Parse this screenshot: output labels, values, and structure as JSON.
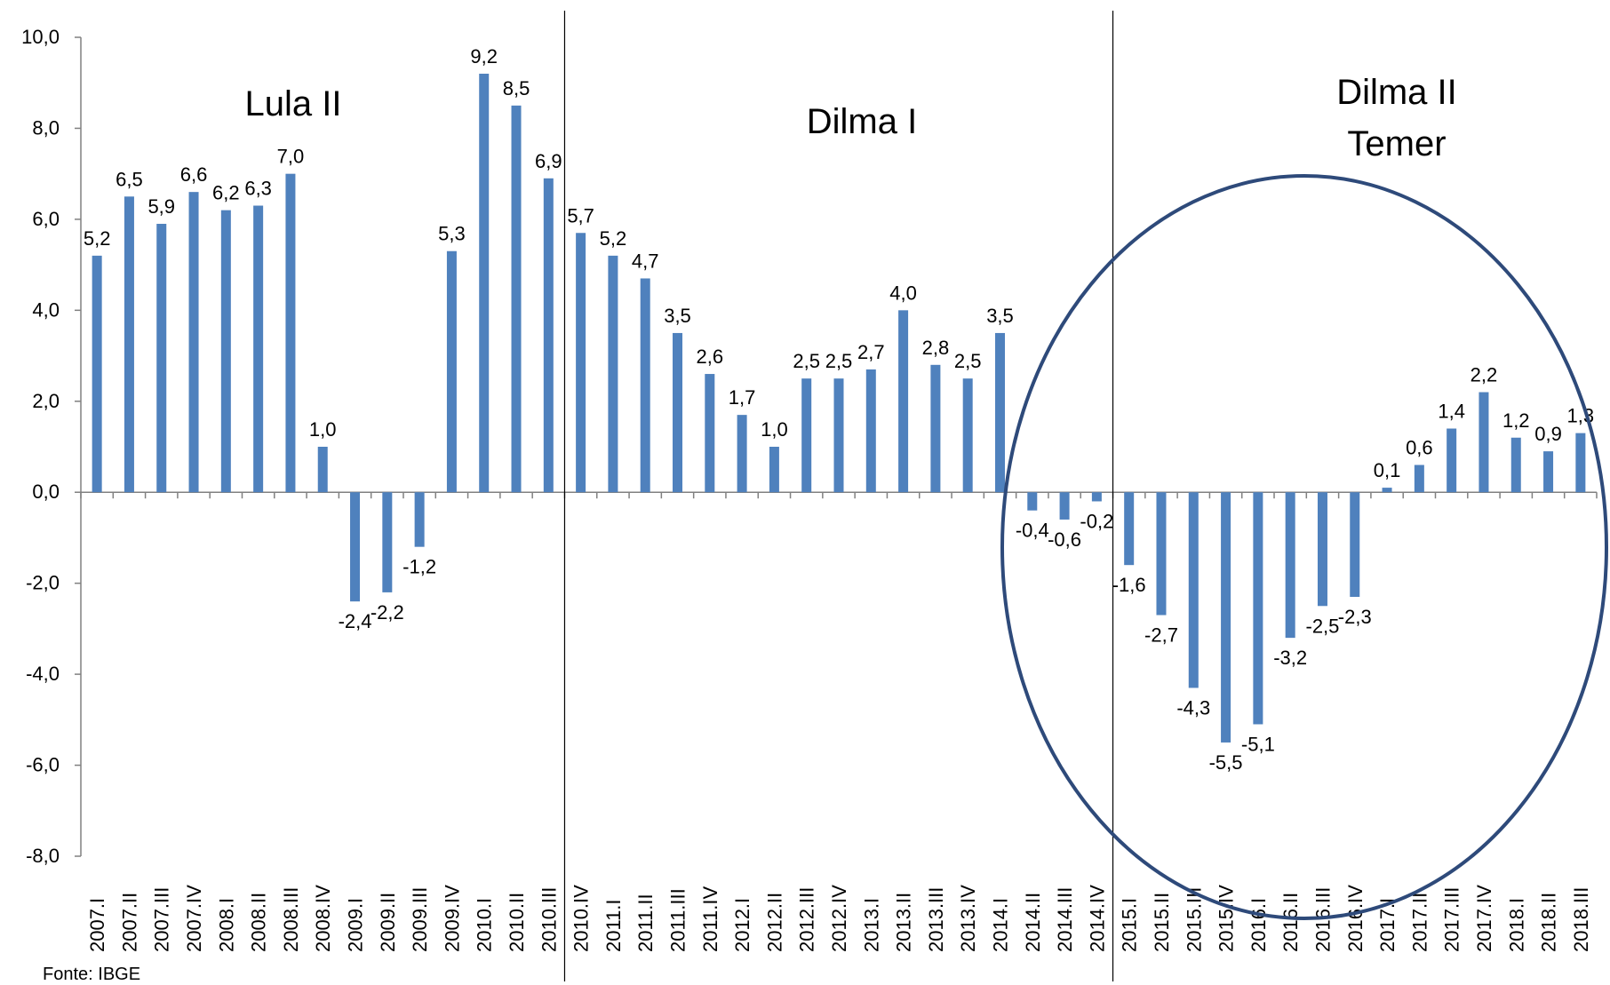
{
  "source_note": "Fonte: IBGE",
  "annotations": {
    "period_1": "Lula II",
    "period_2": "Dilma I",
    "period_3_line1": "Dilma II",
    "period_3_line2": "Temer"
  },
  "colors": {
    "bar": "#4F81BD",
    "ellipse": "#2E4A7A",
    "axis": "#808080",
    "divider": "#000000"
  },
  "chart_data": {
    "type": "bar",
    "ylim": [
      -8,
      10
    ],
    "yticks": [
      "10,0",
      "8,0",
      "6,0",
      "4,0",
      "2,0",
      "0,0",
      "-2,0",
      "-4,0",
      "-6,0",
      "-8,0"
    ],
    "ytick_values": [
      10,
      8,
      6,
      4,
      2,
      0,
      -2,
      -4,
      -6,
      -8
    ],
    "grid": false,
    "legend": "none",
    "categories": [
      "2007.I",
      "2007.II",
      "2007.III",
      "2007.IV",
      "2008.I",
      "2008.II",
      "2008.III",
      "2008.IV",
      "2009.I",
      "2009.II",
      "2009.III",
      "2009.IV",
      "2010.I",
      "2010.II",
      "2010.III",
      "2010.IV",
      "2011.I",
      "2011.II",
      "2011.III",
      "2011.IV",
      "2012.I",
      "2012.II",
      "2012.III",
      "2012.IV",
      "2013.I",
      "2013.II",
      "2013.III",
      "2013.IV",
      "2014.I",
      "2014.II",
      "2014.III",
      "2014.IV",
      "2015.I",
      "2015.II",
      "2015.III",
      "2015.IV",
      "2016.I",
      "2016.II",
      "2016.III",
      "2016.IV",
      "2017.I",
      "2017.II",
      "2017.III",
      "2017.IV",
      "2018.I",
      "2018.II",
      "2018.III"
    ],
    "values": [
      5.2,
      6.5,
      5.9,
      6.6,
      6.2,
      6.3,
      7.0,
      1.0,
      -2.4,
      -2.2,
      -1.2,
      5.3,
      9.2,
      8.5,
      6.9,
      5.7,
      5.2,
      4.7,
      3.5,
      2.6,
      1.7,
      1.0,
      2.5,
      2.5,
      2.7,
      4.0,
      2.8,
      2.5,
      3.5,
      -0.4,
      -0.6,
      -0.2,
      -1.6,
      -2.7,
      -4.3,
      -5.5,
      -5.1,
      -3.2,
      -2.5,
      -2.3,
      0.1,
      0.6,
      1.4,
      2.2,
      1.2,
      0.9,
      1.3
    ],
    "data_labels": [
      "5,2",
      "6,5",
      "5,9",
      "6,6",
      "6,2",
      "6,3",
      "7,0",
      "1,0",
      "-2,4",
      "-2,2",
      "-1,2",
      "5,3",
      "9,2",
      "8,5",
      "6,9",
      "5,7",
      "5,2",
      "4,7",
      "3,5",
      "2,6",
      "1,7",
      "1,0",
      "2,5",
      "2,5",
      "2,7",
      "4,0",
      "2,8",
      "2,5",
      "3,5",
      "-0,4",
      "-0,6",
      "-0,2",
      "-1,6",
      "-2,7",
      "-4,3",
      "-5,5",
      "-5,1",
      "-3,2",
      "-2,5",
      "-2,3",
      "0,1",
      "0,6",
      "1,4",
      "2,2",
      "1,2",
      "0,9",
      "1,3"
    ],
    "period_dividers_after": [
      "2010.III",
      "2014.IV"
    ]
  }
}
